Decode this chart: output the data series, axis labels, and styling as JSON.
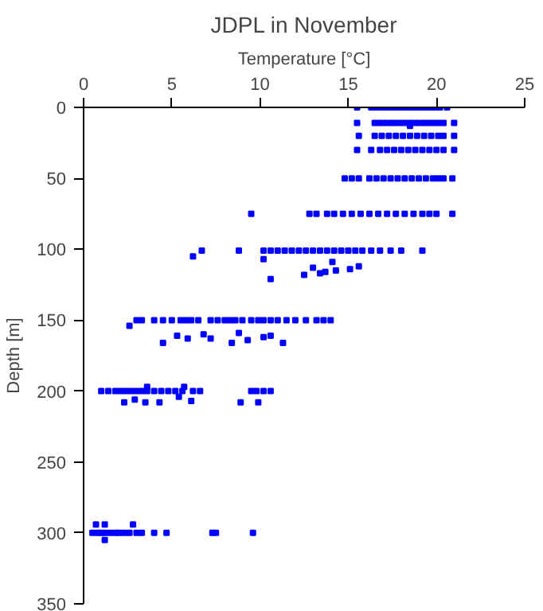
{
  "chart_data": {
    "type": "scatter",
    "title": "JDPL in November",
    "xlabel": "Temperature [°C]",
    "ylabel": "Depth [m]",
    "xlim": [
      0,
      25
    ],
    "xticks": [
      0,
      5,
      10,
      15,
      20,
      25
    ],
    "ylim": [
      350,
      0
    ],
    "yticks": [
      0,
      50,
      100,
      150,
      200,
      250,
      300,
      350
    ],
    "grid": false,
    "marker": "square",
    "series": [
      {
        "color": "#0000ff",
        "x": [
          15.5,
          16.3,
          16.6,
          16.9,
          17.2,
          17.5,
          17.8,
          18.1,
          18.4,
          18.7,
          19.0,
          19.3,
          19.6,
          19.9,
          20.2,
          20.6,
          15.5,
          16.5,
          16.8,
          17.1,
          17.4,
          17.7,
          18.0,
          18.3,
          18.6,
          18.9,
          19.2,
          19.5,
          19.8,
          20.1,
          20.4,
          21.0,
          18.5,
          15.6,
          16.5,
          16.9,
          17.3,
          17.7,
          18.1,
          18.5,
          18.9,
          19.3,
          19.7,
          20.1,
          20.4,
          21.0,
          15.5,
          16.3,
          16.8,
          17.2,
          17.6,
          18.0,
          18.4,
          18.8,
          19.2,
          19.6,
          20.0,
          20.4,
          21.0,
          14.8,
          15.2,
          15.6,
          16.2,
          16.6,
          17.0,
          17.4,
          17.8,
          18.2,
          18.6,
          19.0,
          19.4,
          19.8,
          20.1,
          20.4,
          20.9,
          9.5,
          12.8,
          13.2,
          13.8,
          14.2,
          14.7,
          15.2,
          15.7,
          16.2,
          16.7,
          17.2,
          17.7,
          18.2,
          18.7,
          19.2,
          19.6,
          20.0,
          20.9,
          6.2,
          6.7,
          8.8,
          10.2,
          10.6,
          11.0,
          11.4,
          11.8,
          12.2,
          12.6,
          13.0,
          13.4,
          13.8,
          14.2,
          14.6,
          15.0,
          15.4,
          15.8,
          16.3,
          16.8,
          17.4,
          18.0,
          19.2,
          10.2,
          10.6,
          13.0,
          13.4,
          13.7,
          14.1,
          14.3,
          15.1,
          15.6,
          12.5,
          2.6,
          3.0,
          3.3,
          4.0,
          4.5,
          5.0,
          5.5,
          5.8,
          6.1,
          6.5,
          7.2,
          7.6,
          8.0,
          8.3,
          8.6,
          9.0,
          9.5,
          9.9,
          10.2,
          10.6,
          11.0,
          11.5,
          12.0,
          12.6,
          13.2,
          13.6,
          14.0,
          4.5,
          5.3,
          5.9,
          6.8,
          7.2,
          8.4,
          8.8,
          9.3,
          10.2,
          10.6,
          11.3,
          1.0,
          1.4,
          1.8,
          2.1,
          2.4,
          2.7,
          3.0,
          3.3,
          3.6,
          4.0,
          4.4,
          4.8,
          5.2,
          5.6,
          6.2,
          6.6,
          9.5,
          9.8,
          10.2,
          10.6,
          2.3,
          2.9,
          3.5,
          4.3,
          5.4,
          6.1,
          8.9,
          9.9,
          3.6,
          5.7,
          0.5,
          0.8,
          1.0,
          1.2,
          1.5,
          1.8,
          2.0,
          2.3,
          2.6,
          3.0,
          3.3,
          4.0,
          4.7,
          7.3,
          7.5,
          9.6,
          0.7,
          1.2,
          2.8,
          1.2
        ],
        "values": [
          0,
          0,
          0,
          0,
          0,
          0,
          0,
          0,
          0,
          0,
          0,
          0,
          0,
          0,
          0,
          0,
          11,
          11,
          11,
          11,
          11,
          11,
          11,
          11,
          11,
          11,
          11,
          11,
          11,
          11,
          11,
          11,
          13,
          20,
          20,
          20,
          20,
          20,
          20,
          20,
          20,
          20,
          20,
          20,
          20,
          20,
          30,
          30,
          30,
          30,
          30,
          30,
          30,
          30,
          30,
          30,
          30,
          30,
          30,
          50,
          50,
          50,
          50,
          50,
          50,
          50,
          50,
          50,
          50,
          50,
          50,
          50,
          50,
          50,
          50,
          75,
          75,
          75,
          75,
          75,
          75,
          75,
          75,
          75,
          75,
          75,
          75,
          75,
          75,
          75,
          75,
          75,
          75,
          105,
          101,
          101,
          101,
          101,
          101,
          101,
          101,
          101,
          101,
          101,
          101,
          101,
          101,
          101,
          101,
          101,
          101,
          101,
          101,
          101,
          101,
          101,
          107,
          121,
          113,
          117,
          116,
          109,
          115,
          114,
          112,
          118,
          154,
          150,
          150,
          150,
          150,
          150,
          150,
          150,
          150,
          150,
          150,
          150,
          150,
          150,
          150,
          150,
          150,
          150,
          150,
          150,
          150,
          150,
          150,
          150,
          150,
          150,
          150,
          166,
          161,
          163,
          160,
          163,
          166,
          159,
          164,
          162,
          161,
          166,
          200,
          200,
          200,
          200,
          200,
          200,
          200,
          200,
          200,
          200,
          200,
          200,
          200,
          200,
          200,
          200,
          200,
          200,
          200,
          200,
          208,
          206,
          208,
          208,
          204,
          207,
          208,
          208,
          197,
          197,
          300,
          300,
          300,
          300,
          300,
          300,
          300,
          300,
          300,
          300,
          300,
          300,
          300,
          300,
          300,
          300,
          294,
          294,
          294,
          305
        ]
      }
    ]
  }
}
